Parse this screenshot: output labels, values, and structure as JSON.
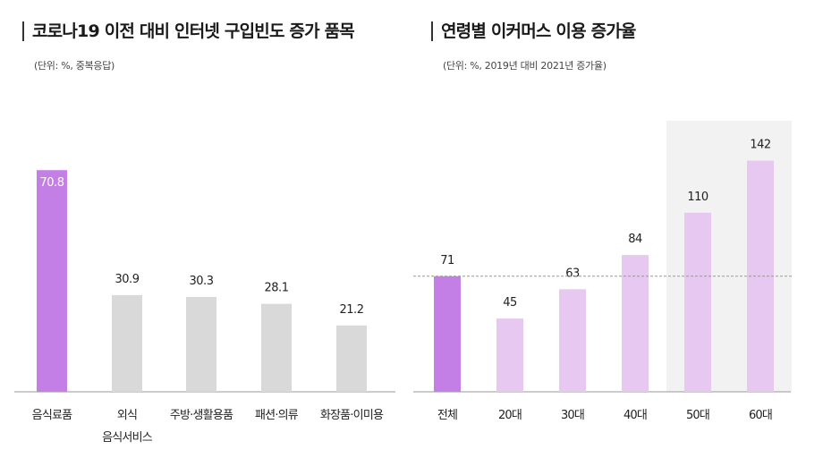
{
  "chart_data": [
    {
      "type": "bar",
      "title": "코로나19 이전 대비 인터넷 구입빈도 증가 품목",
      "subtitle": "(단위: %, 중복응답)",
      "categories": [
        [
          "음식료품"
        ],
        [
          "외식",
          "음식서비스"
        ],
        [
          "주방·생활용품"
        ],
        [
          "패션·의류"
        ],
        [
          "화장품·이미용"
        ]
      ],
      "values": [
        70.8,
        30.9,
        30.3,
        28.1,
        21.2
      ],
      "colors": [
        "#c47fe6",
        "#d9d9d9",
        "#d9d9d9",
        "#d9d9d9",
        "#d9d9d9"
      ],
      "highlight_index": 0,
      "ylim": [
        0,
        80
      ]
    },
    {
      "type": "bar",
      "title": "연령별 이커머스 이용 증가율",
      "subtitle": "(단위: %, 2019년 대비 2021년 증가율)",
      "categories": [
        [
          "전체"
        ],
        [
          "20대"
        ],
        [
          "30대"
        ],
        [
          "40대"
        ],
        [
          "50대"
        ],
        [
          "60대"
        ]
      ],
      "values": [
        71,
        45,
        63,
        84,
        110,
        142
      ],
      "colors": [
        "#c47fe6",
        "#e6c8f0",
        "#e6c8f0",
        "#e6c8f0",
        "#e6c8f0",
        "#e6c8f0"
      ],
      "reference_line": 71,
      "shaded_categories": [
        "50대",
        "60대"
      ],
      "shade_color": "#f2f2f2",
      "ylim": [
        0,
        150
      ]
    }
  ]
}
